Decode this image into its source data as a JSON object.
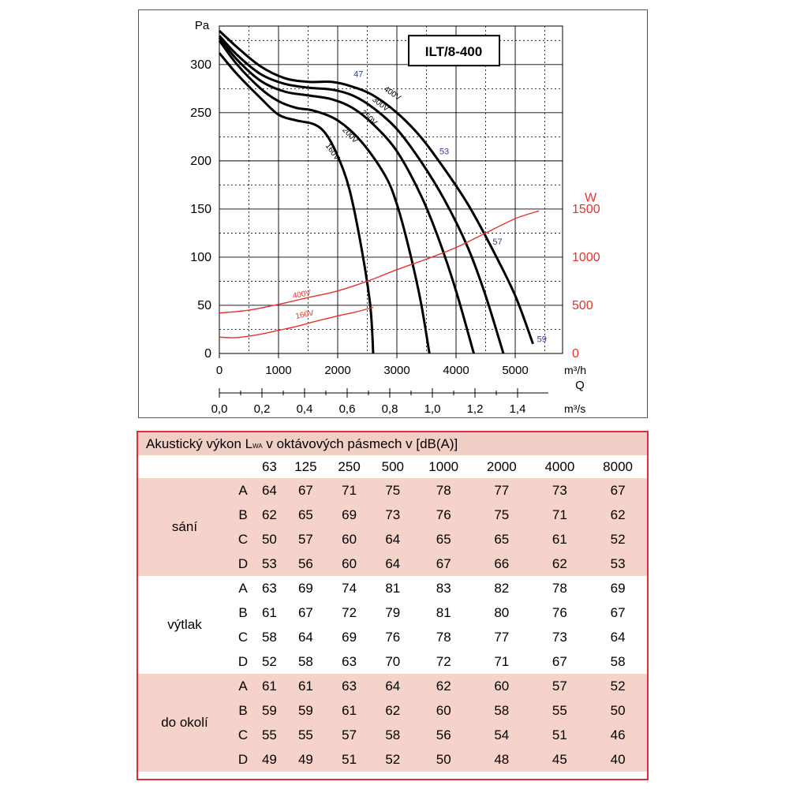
{
  "chart_data": {
    "type": "line",
    "model_label": "ILT/8-400",
    "y_left": {
      "label": "Pa",
      "ticks": [
        0,
        50,
        100,
        150,
        200,
        250,
        300
      ],
      "range": [
        0,
        340
      ]
    },
    "y_right": {
      "label": "W",
      "ticks": [
        0,
        500,
        1000,
        1500
      ],
      "color": "#e8312b"
    },
    "x_top": {
      "unit": "m³/h",
      "ticks": [
        0,
        1000,
        2000,
        3000,
        4000,
        5000
      ],
      "range": [
        0,
        5800
      ]
    },
    "x_axis_symbol": "Q",
    "x_bottom": {
      "unit": "m³/s",
      "ticks": [
        "0,0",
        "0,2",
        "0,4",
        "0,6",
        "0,8",
        "1,0",
        "1,2",
        "1,4"
      ]
    },
    "pressure_series": [
      {
        "name": "400V",
        "points": [
          [
            0,
            335
          ],
          [
            300,
            318
          ],
          [
            700,
            298
          ],
          [
            1100,
            286
          ],
          [
            1500,
            282
          ],
          [
            1900,
            282
          ],
          [
            2250,
            277
          ],
          [
            2600,
            268
          ],
          [
            3000,
            250
          ],
          [
            3400,
            225
          ],
          [
            3800,
            192
          ],
          [
            4200,
            155
          ],
          [
            4600,
            110
          ],
          [
            5000,
            60
          ],
          [
            5300,
            10
          ]
        ]
      },
      {
        "name": "300V",
        "points": [
          [
            0,
            330
          ],
          [
            300,
            310
          ],
          [
            700,
            290
          ],
          [
            1100,
            280
          ],
          [
            1500,
            276
          ],
          [
            1900,
            274
          ],
          [
            2250,
            268
          ],
          [
            2600,
            255
          ],
          [
            3000,
            233
          ],
          [
            3400,
            200
          ],
          [
            3800,
            160
          ],
          [
            4200,
            110
          ],
          [
            4500,
            60
          ],
          [
            4800,
            0
          ]
        ]
      },
      {
        "name": "250V",
        "points": [
          [
            0,
            328
          ],
          [
            300,
            305
          ],
          [
            700,
            283
          ],
          [
            1100,
            272
          ],
          [
            1500,
            268
          ],
          [
            1900,
            264
          ],
          [
            2250,
            255
          ],
          [
            2600,
            238
          ],
          [
            3000,
            210
          ],
          [
            3400,
            165
          ],
          [
            3700,
            120
          ],
          [
            4000,
            65
          ],
          [
            4300,
            0
          ]
        ]
      },
      {
        "name": "200V",
        "points": [
          [
            0,
            325
          ],
          [
            300,
            300
          ],
          [
            700,
            275
          ],
          [
            1000,
            262
          ],
          [
            1300,
            255
          ],
          [
            1600,
            252
          ],
          [
            2000,
            242
          ],
          [
            2400,
            220
          ],
          [
            2800,
            185
          ],
          [
            3000,
            155
          ],
          [
            3200,
            110
          ],
          [
            3400,
            55
          ],
          [
            3550,
            0
          ]
        ]
      },
      {
        "name": "160V",
        "points": [
          [
            0,
            312
          ],
          [
            300,
            290
          ],
          [
            700,
            265
          ],
          [
            1000,
            248
          ],
          [
            1300,
            242
          ],
          [
            1600,
            238
          ],
          [
            1800,
            228
          ],
          [
            2000,
            205
          ],
          [
            2200,
            170
          ],
          [
            2400,
            110
          ],
          [
            2550,
            50
          ],
          [
            2600,
            0
          ]
        ]
      }
    ],
    "power_series": [
      {
        "name": "400V",
        "color": "#e8312b",
        "points": [
          [
            0,
            420
          ],
          [
            500,
            450
          ],
          [
            1000,
            510
          ],
          [
            1500,
            580
          ],
          [
            2000,
            650
          ],
          [
            2500,
            750
          ],
          [
            3000,
            870
          ],
          [
            3500,
            980
          ],
          [
            4000,
            1100
          ],
          [
            4500,
            1250
          ],
          [
            5000,
            1400
          ],
          [
            5400,
            1480
          ]
        ]
      },
      {
        "name": "160V",
        "color": "#e8312b",
        "points": [
          [
            0,
            170
          ],
          [
            300,
            165
          ],
          [
            700,
            200
          ],
          [
            1000,
            240
          ],
          [
            1300,
            280
          ],
          [
            1600,
            330
          ],
          [
            2000,
            390
          ],
          [
            2300,
            430
          ],
          [
            2600,
            480
          ]
        ]
      }
    ],
    "noise_labels": [
      "47",
      "53",
      "57",
      "59"
    ],
    "grid": true
  },
  "table": {
    "title_before": "Akustický výkon L",
    "title_sub": "WA",
    "title_after": " v oktávových pásmech v [dB(A)]",
    "frequencies": [
      "63",
      "125",
      "250",
      "500",
      "1000",
      "2000",
      "4000",
      "8000"
    ],
    "groups": [
      {
        "label": "sání",
        "rows": [
          {
            "id": "A",
            "values": [
              "64",
              "67",
              "71",
              "75",
              "78",
              "77",
              "73",
              "67"
            ]
          },
          {
            "id": "B",
            "values": [
              "62",
              "65",
              "69",
              "73",
              "76",
              "75",
              "71",
              "62"
            ]
          },
          {
            "id": "C",
            "values": [
              "50",
              "57",
              "60",
              "64",
              "65",
              "65",
              "61",
              "52"
            ]
          },
          {
            "id": "D",
            "values": [
              "53",
              "56",
              "60",
              "64",
              "67",
              "66",
              "62",
              "53"
            ]
          }
        ]
      },
      {
        "label": "výtlak",
        "rows": [
          {
            "id": "A",
            "values": [
              "63",
              "69",
              "74",
              "81",
              "83",
              "82",
              "78",
              "69"
            ]
          },
          {
            "id": "B",
            "values": [
              "61",
              "67",
              "72",
              "79",
              "81",
              "80",
              "76",
              "67"
            ]
          },
          {
            "id": "C",
            "values": [
              "58",
              "64",
              "69",
              "76",
              "78",
              "77",
              "73",
              "64"
            ]
          },
          {
            "id": "D",
            "values": [
              "52",
              "58",
              "63",
              "70",
              "72",
              "71",
              "67",
              "58"
            ]
          }
        ]
      },
      {
        "label": "do okolí",
        "rows": [
          {
            "id": "A",
            "values": [
              "61",
              "61",
              "63",
              "64",
              "62",
              "60",
              "57",
              "52"
            ]
          },
          {
            "id": "B",
            "values": [
              "59",
              "59",
              "61",
              "62",
              "60",
              "58",
              "55",
              "50"
            ]
          },
          {
            "id": "C",
            "values": [
              "55",
              "55",
              "57",
              "58",
              "56",
              "54",
              "51",
              "46"
            ]
          },
          {
            "id": "D",
            "values": [
              "49",
              "49",
              "51",
              "52",
              "50",
              "48",
              "45",
              "40"
            ]
          }
        ]
      }
    ]
  }
}
